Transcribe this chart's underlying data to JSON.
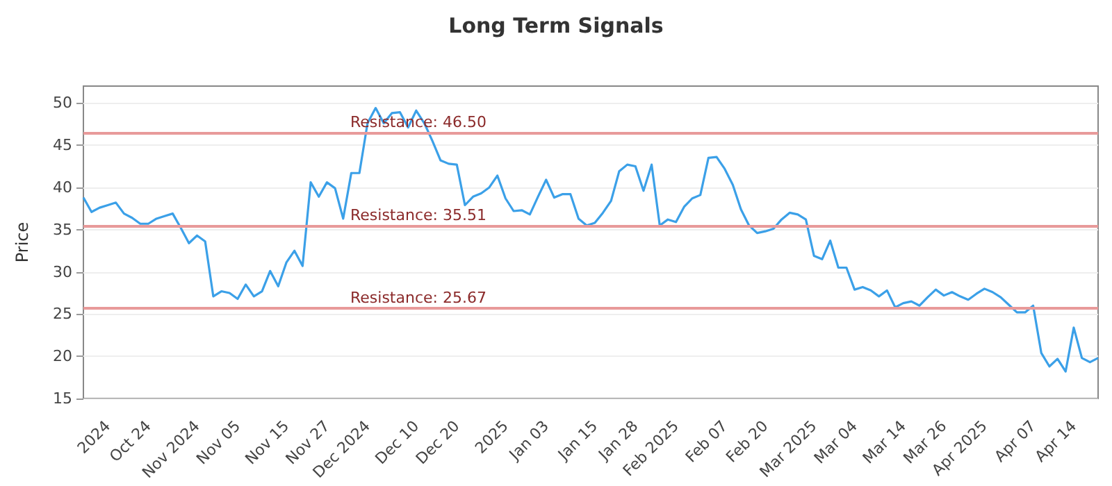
{
  "chart_data": {
    "type": "line",
    "title": "Long Term Signals",
    "ylabel": "Price",
    "categories": [
      null,
      null,
      null,
      "2024",
      null,
      null,
      null,
      null,
      "Oct 24",
      null,
      null,
      null,
      null,
      null,
      "Nov 2024",
      null,
      null,
      null,
      null,
      "Nov 05",
      null,
      null,
      null,
      null,
      null,
      "Nov 15",
      null,
      null,
      null,
      null,
      "Nov 27",
      null,
      null,
      null,
      null,
      "Dec 2024",
      null,
      null,
      null,
      null,
      null,
      "Dec 10",
      null,
      null,
      null,
      null,
      "Dec 20",
      null,
      null,
      null,
      null,
      null,
      "2025",
      null,
      null,
      null,
      null,
      "Jan 03",
      null,
      null,
      null,
      null,
      null,
      "Jan 15",
      null,
      null,
      null,
      null,
      "Jan 28",
      null,
      null,
      null,
      null,
      "Feb 2025",
      null,
      null,
      null,
      null,
      null,
      "Feb 07",
      null,
      null,
      null,
      null,
      "Feb 20",
      null,
      null,
      null,
      null,
      null,
      "Mar 2025",
      null,
      null,
      null,
      null,
      "Mar 04",
      null,
      null,
      null,
      null,
      null,
      "Mar 14",
      null,
      null,
      null,
      null,
      "Mar 26",
      null,
      null,
      null,
      null,
      "Apr 2025",
      null,
      null,
      null,
      null,
      null,
      "Apr 07",
      null,
      null,
      null,
      null,
      "Apr 14",
      null,
      null,
      null
    ],
    "series": [
      {
        "color": "#3ba0e8",
        "values": [
          38.8,
          37.1,
          37.6,
          37.9,
          38.2,
          36.9,
          36.4,
          35.7,
          35.7,
          36.3,
          36.6,
          36.9,
          35.2,
          33.4,
          34.3,
          33.6,
          27.1,
          27.7,
          27.5,
          26.8,
          28.5,
          27.1,
          27.7,
          30.1,
          28.3,
          31.1,
          32.5,
          30.7,
          40.6,
          38.9,
          40.6,
          39.9,
          36.3,
          41.7,
          41.7,
          47.6,
          49.4,
          47.6,
          48.8,
          48.9,
          47.1,
          49.1,
          47.6,
          45.5,
          43.2,
          42.8,
          42.7,
          37.9,
          38.9,
          39.3,
          40.0,
          41.4,
          38.7,
          37.2,
          37.3,
          36.8,
          38.9,
          40.9,
          38.8,
          39.2,
          39.2,
          36.3,
          35.5,
          35.8,
          37.0,
          38.4,
          41.9,
          42.7,
          42.5,
          39.6,
          42.7,
          35.5,
          36.2,
          35.9,
          37.7,
          38.7,
          39.1,
          43.5,
          43.6,
          42.2,
          40.3,
          37.4,
          35.5,
          34.6,
          34.8,
          35.1,
          36.2,
          37.0,
          36.8,
          36.2,
          31.9,
          31.5,
          33.7,
          30.5,
          30.5,
          27.9,
          28.2,
          27.8,
          27.1,
          27.8,
          25.8,
          26.3,
          26.5,
          26.0,
          27.0,
          27.9,
          27.2,
          27.6,
          27.1,
          26.7,
          27.4,
          28.0,
          27.6,
          27.0,
          26.1,
          25.2,
          25.2,
          26.0,
          20.4,
          18.8,
          19.7,
          18.2,
          23.4,
          19.8,
          19.3,
          19.8
        ]
      }
    ],
    "ylim": [
      15,
      52
    ],
    "yticks": [
      15,
      20,
      25,
      30,
      35,
      40,
      45,
      50
    ],
    "grid": "y",
    "marker": "none",
    "line_style": "solid",
    "ref_lines": [
      {
        "axis": "y",
        "value": 46.5,
        "label": "Resistance: 46.50",
        "color": "#e89a9a"
      },
      {
        "axis": "y",
        "value": 35.51,
        "label": "Resistance: 35.51",
        "color": "#e89a9a"
      },
      {
        "axis": "y",
        "value": 25.67,
        "label": "Resistance: 25.67",
        "color": "#e89a9a"
      }
    ]
  }
}
